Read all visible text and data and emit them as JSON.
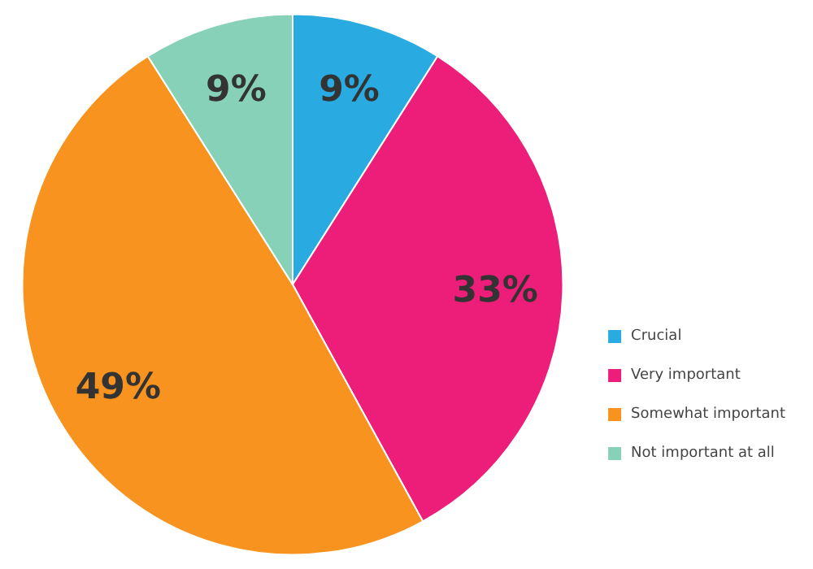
{
  "chart_data": {
    "type": "pie",
    "categories": [
      "Crucial",
      "Very important",
      "Somewhat important",
      "Not important at all"
    ],
    "values": [
      9,
      33,
      49,
      9
    ],
    "colors": [
      "#29abe2",
      "#ed1e79",
      "#f7931e",
      "#88d1b9"
    ],
    "value_labels": [
      "9%",
      "33%",
      "49%",
      "9%"
    ],
    "legend": "bottom right"
  }
}
